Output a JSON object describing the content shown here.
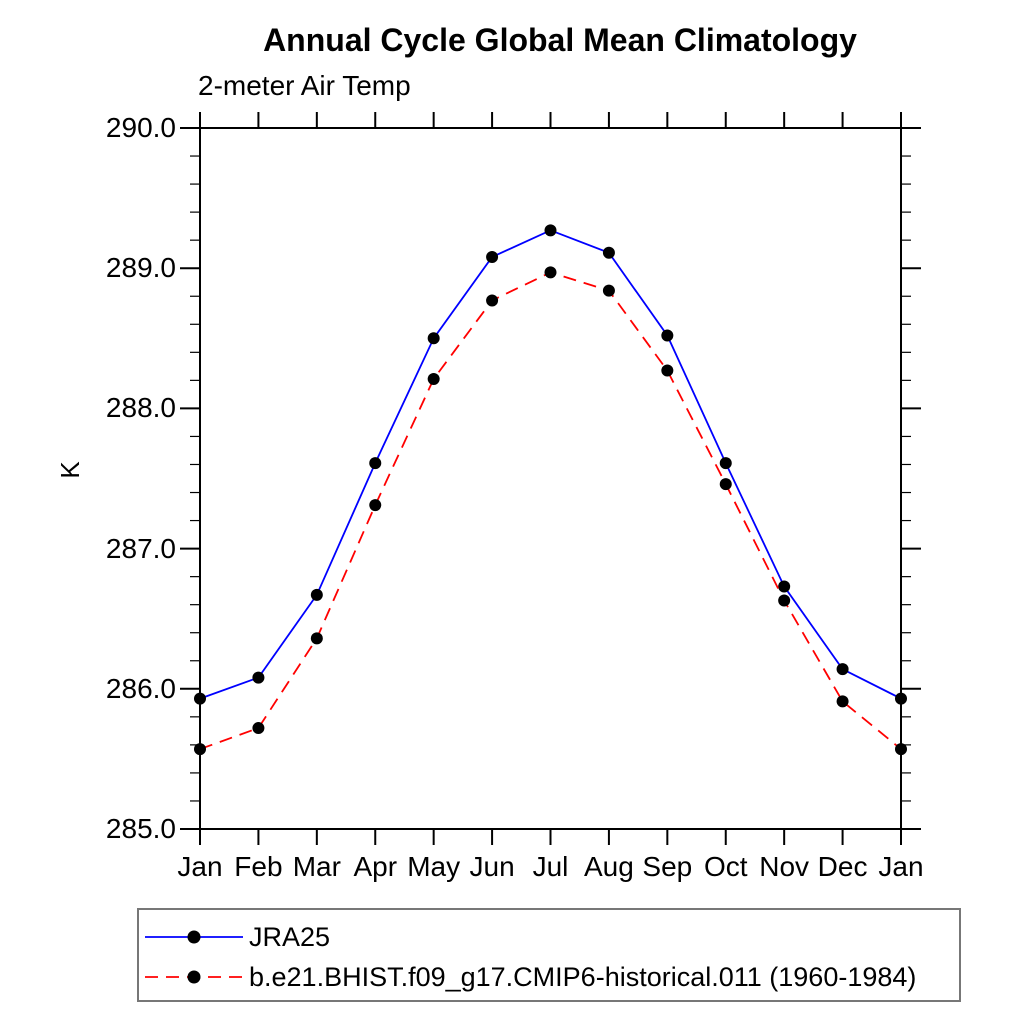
{
  "title": "Annual Cycle Global Mean Climatology",
  "subtitle": "2-meter Air Temp",
  "y_axis": {
    "unit_label": "K",
    "tick_labels": [
      "290.0",
      "289.0",
      "288.0",
      "287.0",
      "286.0",
      "285.0"
    ]
  },
  "x_axis": {
    "tick_labels": [
      "Jan",
      "Feb",
      "Mar",
      "Apr",
      "May",
      "Jun",
      "Jul",
      "Aug",
      "Sep",
      "Oct",
      "Nov",
      "Dec",
      "Jan"
    ]
  },
  "legend": {
    "items": [
      {
        "label": "JRA25",
        "line_color": "#0000ff",
        "line_style": "solid",
        "marker": "filled-circle",
        "marker_color": "#000000"
      },
      {
        "label": "b.e21.BHIST.f09_g17.CMIP6-historical.011 (1960-1984)",
        "line_color": "#ff0000",
        "line_style": "dashed",
        "marker": "filled-circle",
        "marker_color": "#000000"
      }
    ]
  },
  "colors": {
    "series1": "#0000ff",
    "series2": "#ff0000",
    "marker": "#000000",
    "axis": "#000000",
    "legend_border": "#777777"
  },
  "chart_data": {
    "type": "line",
    "title": "Annual Cycle Global Mean Climatology",
    "subtitle": "2-meter Air Temp",
    "xlabel": "",
    "ylabel": "K",
    "ylim": [
      285.0,
      290.0
    ],
    "ytick_major_step": 1.0,
    "ytick_minor_step": 0.2,
    "grid": false,
    "legend_position": "bottom-left",
    "x": [
      "Jan",
      "Feb",
      "Mar",
      "Apr",
      "May",
      "Jun",
      "Jul",
      "Aug",
      "Sep",
      "Oct",
      "Nov",
      "Dec",
      "Jan"
    ],
    "series": [
      {
        "name": "JRA25",
        "color": "#0000ff",
        "line_style": "solid",
        "marker": "filled-circle",
        "marker_color": "#000000",
        "values": [
          285.93,
          286.08,
          286.67,
          287.61,
          288.5,
          289.08,
          289.27,
          289.11,
          288.52,
          287.61,
          286.73,
          286.14,
          285.93
        ]
      },
      {
        "name": "b.e21.BHIST.f09_g17.CMIP6-historical.011 (1960-1984)",
        "color": "#ff0000",
        "line_style": "dashed",
        "marker": "filled-circle",
        "marker_color": "#000000",
        "values": [
          285.57,
          285.72,
          286.36,
          287.31,
          288.21,
          288.77,
          288.97,
          288.84,
          288.27,
          287.46,
          286.63,
          285.91,
          285.57
        ]
      }
    ]
  }
}
